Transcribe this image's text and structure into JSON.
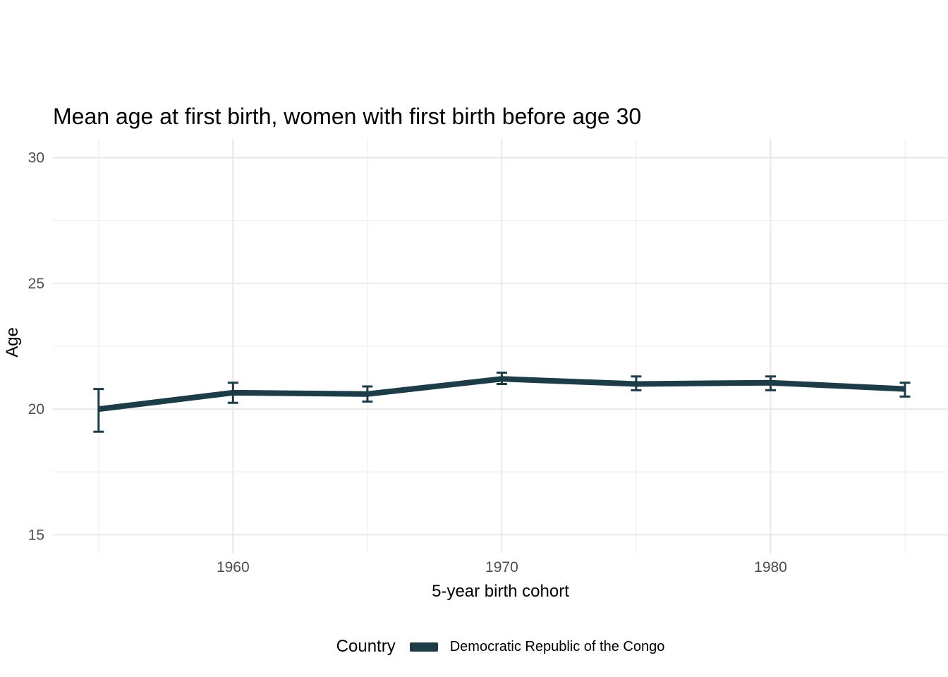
{
  "chart_data": {
    "type": "line",
    "title": "Mean age at first birth, women with first birth before age 30",
    "xlabel": "5-year birth cohort",
    "ylabel": "Age",
    "x": [
      1955,
      1960,
      1965,
      1970,
      1975,
      1980,
      1985
    ],
    "series": [
      {
        "name": "Democratic Republic of the Congo",
        "color": "#1c3c48",
        "values": [
          20.0,
          20.65,
          20.6,
          21.2,
          21.0,
          21.05,
          20.8
        ],
        "ci_low": [
          19.1,
          20.25,
          20.3,
          21.0,
          20.75,
          20.75,
          20.5
        ],
        "ci_high": [
          20.8,
          21.05,
          20.9,
          21.45,
          21.3,
          21.3,
          21.05
        ]
      }
    ],
    "xlim": [
      1953.3,
      1986.6
    ],
    "ylim": [
      14.25,
      30.75
    ],
    "x_ticks": {
      "values": [
        1960,
        1970,
        1980
      ],
      "labels": [
        "1960",
        "1970",
        "1980"
      ]
    },
    "y_ticks": {
      "values": [
        15,
        20,
        25,
        30
      ],
      "labels": [
        "15",
        "20",
        "25",
        "30"
      ]
    },
    "x_minor": [
      1955,
      1965,
      1975,
      1985
    ],
    "y_minor": [
      17.5,
      22.5,
      27.5
    ],
    "grid": true,
    "legend": {
      "title": "Country",
      "position": "bottom"
    },
    "colors": {
      "grid_major": "#e7e7e7",
      "grid_minor": "#f0f0f0",
      "tick_text": "#4d4d4d"
    }
  }
}
